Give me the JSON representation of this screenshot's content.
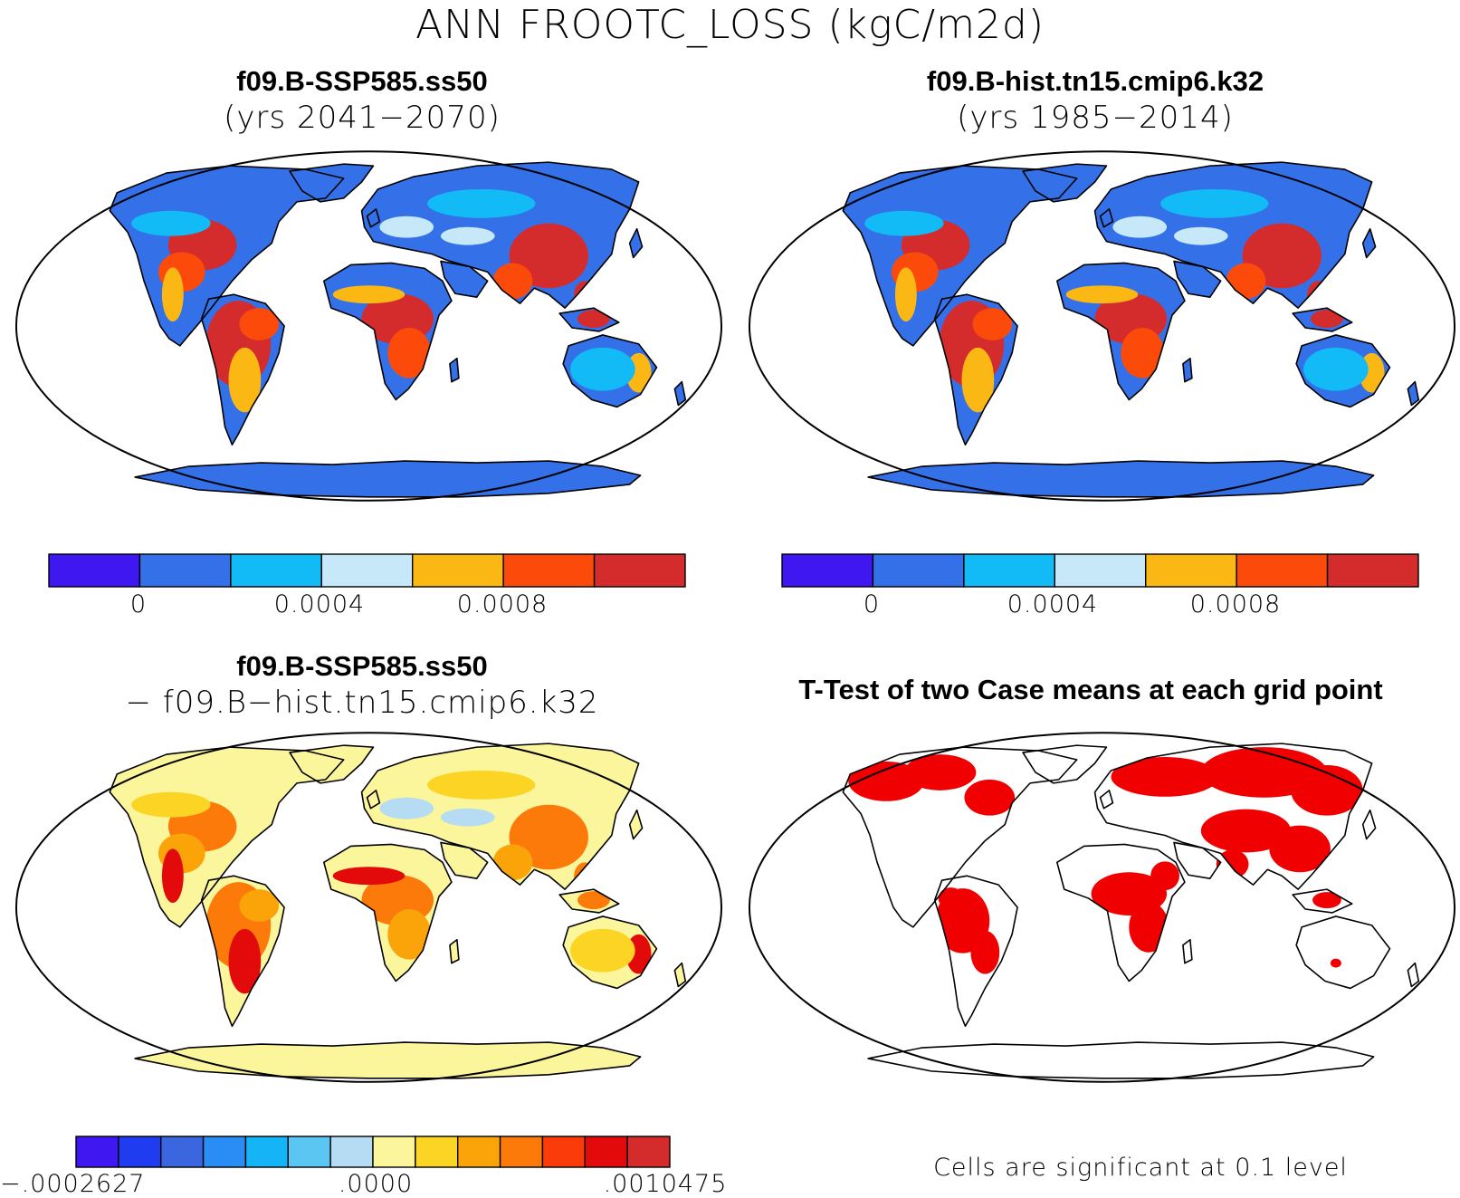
{
  "main_title": "ANN FROOTC_LOSS (kgC/m2d)",
  "panels": [
    {
      "title": "f09.B-SSP585.ss50",
      "subtitle": "(yrs 2041−2070)",
      "colorbar": {
        "colors": [
          "#3f17f0",
          "#3471e8",
          "#13bbf6",
          "#c7e8f8",
          "#fbb714",
          "#fb4a0a",
          "#d42c2c"
        ],
        "labels": [
          "0",
          "0.0004",
          "0.0008"
        ]
      },
      "land_color": "#3471e8",
      "hot_colors": [
        "#d42c2c",
        "#fb4a0a",
        "#fbb714"
      ],
      "mid_colors": [
        "#13bbf6",
        "#c7e8f8"
      ]
    },
    {
      "title": "f09.B-hist.tn15.cmip6.k32",
      "subtitle": "(yrs 1985−2014)",
      "colorbar": {
        "colors": [
          "#3f17f0",
          "#3471e8",
          "#13bbf6",
          "#c7e8f8",
          "#fbb714",
          "#fb4a0a",
          "#d42c2c"
        ],
        "labels": [
          "0",
          "0.0004",
          "0.0008"
        ]
      },
      "land_color": "#3471e8",
      "hot_colors": [
        "#d42c2c",
        "#fb4a0a",
        "#fbb714"
      ],
      "mid_colors": [
        "#13bbf6",
        "#c7e8f8"
      ]
    },
    {
      "title": "f09.B-SSP585.ss50",
      "subtitle": "− f09.B−hist.tn15.cmip6.k32",
      "colorbar": {
        "colors": [
          "#3f17f0",
          "#1f3cf0",
          "#3a66e0",
          "#2a8cf5",
          "#14b4f6",
          "#5cc6f3",
          "#b5dcf3",
          "#fbf59b",
          "#fbd424",
          "#fba40a",
          "#fb7a0a",
          "#fb3c0a",
          "#e20a0a",
          "#d42c2c"
        ],
        "labels": [
          "−.0002627",
          ".0000",
          ".0010475"
        ]
      },
      "land_color": "#fbf59b",
      "hot_colors": [
        "#fb7a0a",
        "#fba40a",
        "#e20a0a"
      ],
      "mid_colors": [
        "#fbd424",
        "#b5dcf3"
      ]
    },
    {
      "title": "T-Test of two Case means at each grid point",
      "note": "Cells are significant at 0.1 level",
      "signif_color": "#f00000"
    }
  ]
}
